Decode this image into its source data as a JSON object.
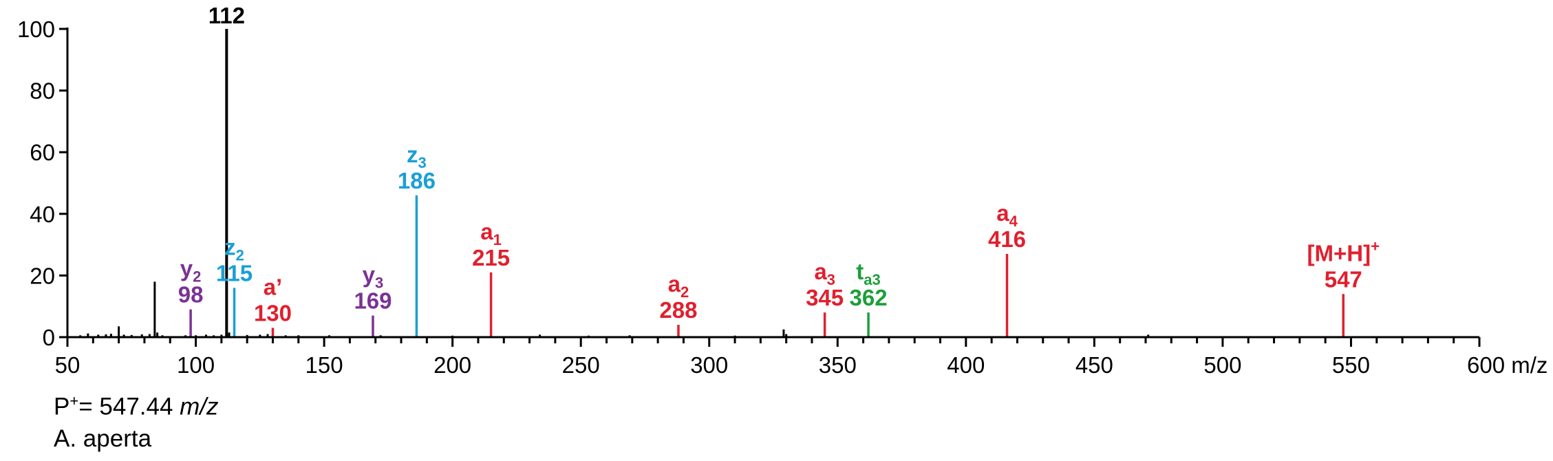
{
  "chart_data": {
    "type": "bar",
    "subtype": "mass-spectrum",
    "xlabel": "m/z",
    "xlim": [
      50,
      600
    ],
    "ylim": [
      0,
      100
    ],
    "x_ticks": [
      50,
      100,
      150,
      200,
      250,
      300,
      350,
      400,
      450,
      500,
      550,
      600
    ],
    "x_tick_labels": [
      "50",
      "100",
      "150",
      "200",
      "250",
      "300",
      "350",
      "400",
      "450",
      "500",
      "550",
      "600 m/z"
    ],
    "y_ticks": [
      0,
      20,
      40,
      60,
      80,
      100
    ],
    "y_tick_labels": [
      "0",
      "20",
      "40",
      "60",
      "80",
      "100"
    ],
    "base_peak": {
      "mz": 112,
      "intensity": 100,
      "label": "112",
      "color": "#000000"
    },
    "minor_peaks": [
      {
        "mz": 55,
        "intensity": 0.6
      },
      {
        "mz": 58,
        "intensity": 1.2
      },
      {
        "mz": 62,
        "intensity": 0.8
      },
      {
        "mz": 65,
        "intensity": 0.9
      },
      {
        "mz": 67,
        "intensity": 1.1
      },
      {
        "mz": 70,
        "intensity": 3.5
      },
      {
        "mz": 72,
        "intensity": 0.8
      },
      {
        "mz": 75,
        "intensity": 0.7
      },
      {
        "mz": 79,
        "intensity": 0.9
      },
      {
        "mz": 82,
        "intensity": 1.0
      },
      {
        "mz": 84,
        "intensity": 18
      },
      {
        "mz": 85,
        "intensity": 1.5
      },
      {
        "mz": 87,
        "intensity": 0.6
      },
      {
        "mz": 96,
        "intensity": 0.6
      },
      {
        "mz": 100,
        "intensity": 0.6
      },
      {
        "mz": 104,
        "intensity": 0.8
      },
      {
        "mz": 107,
        "intensity": 0.6
      },
      {
        "mz": 110,
        "intensity": 0.8
      },
      {
        "mz": 113,
        "intensity": 1.5
      },
      {
        "mz": 120,
        "intensity": 0.7
      },
      {
        "mz": 125,
        "intensity": 0.8
      },
      {
        "mz": 128,
        "intensity": 1.0
      },
      {
        "mz": 135,
        "intensity": 0.6
      },
      {
        "mz": 140,
        "intensity": 0.6
      },
      {
        "mz": 152,
        "intensity": 0.6
      },
      {
        "mz": 172,
        "intensity": 0.6
      },
      {
        "mz": 200,
        "intensity": 0.5
      },
      {
        "mz": 234,
        "intensity": 0.8
      },
      {
        "mz": 253,
        "intensity": 0.5
      },
      {
        "mz": 269,
        "intensity": 0.6
      },
      {
        "mz": 310,
        "intensity": 0.5
      },
      {
        "mz": 329,
        "intensity": 2.5
      },
      {
        "mz": 330,
        "intensity": 1.0
      },
      {
        "mz": 471,
        "intensity": 0.8
      }
    ],
    "labeled_peaks": [
      {
        "mz": 98,
        "intensity": 9,
        "ion": "y",
        "sub": "2",
        "sup": "",
        "label": "98",
        "color": "#7b3294"
      },
      {
        "mz": 115,
        "intensity": 16,
        "ion": "z",
        "sub": "2",
        "sup": "",
        "label": "115",
        "color": "#1a9fd6"
      },
      {
        "mz": 130,
        "intensity": 3,
        "ion": "a’",
        "sub": "",
        "sup": "",
        "label": "130",
        "color": "#e0202e"
      },
      {
        "mz": 169,
        "intensity": 7,
        "ion": "y",
        "sub": "3",
        "sup": "",
        "label": "169",
        "color": "#7b3294"
      },
      {
        "mz": 186,
        "intensity": 46,
        "ion": "z",
        "sub": "3",
        "sup": "",
        "label": "186",
        "color": "#1a9fd6"
      },
      {
        "mz": 215,
        "intensity": 21,
        "ion": "a",
        "sub": "1",
        "sup": "",
        "label": "215",
        "color": "#e0202e"
      },
      {
        "mz": 288,
        "intensity": 4,
        "ion": "a",
        "sub": "2",
        "sup": "",
        "label": "288",
        "color": "#e0202e"
      },
      {
        "mz": 345,
        "intensity": 8,
        "ion": "a",
        "sub": "3",
        "sup": "",
        "label": "345",
        "color": "#e0202e"
      },
      {
        "mz": 362,
        "intensity": 8,
        "ion": "t",
        "sub": "a3",
        "sup": "",
        "label": "362",
        "color": "#1e9e3a"
      },
      {
        "mz": 416,
        "intensity": 27,
        "ion": "a",
        "sub": "4",
        "sup": "",
        "label": "416",
        "color": "#e0202e"
      },
      {
        "mz": 547,
        "intensity": 14,
        "ion": "[M+H]",
        "sub": "",
        "sup": "+",
        "label": "547",
        "color": "#e0202e"
      }
    ]
  },
  "caption": {
    "precursor_prefix": "P",
    "precursor_sup": "+",
    "precursor_value": "= 547.44 ",
    "precursor_unit": "m/z",
    "species": "A. aperta"
  }
}
